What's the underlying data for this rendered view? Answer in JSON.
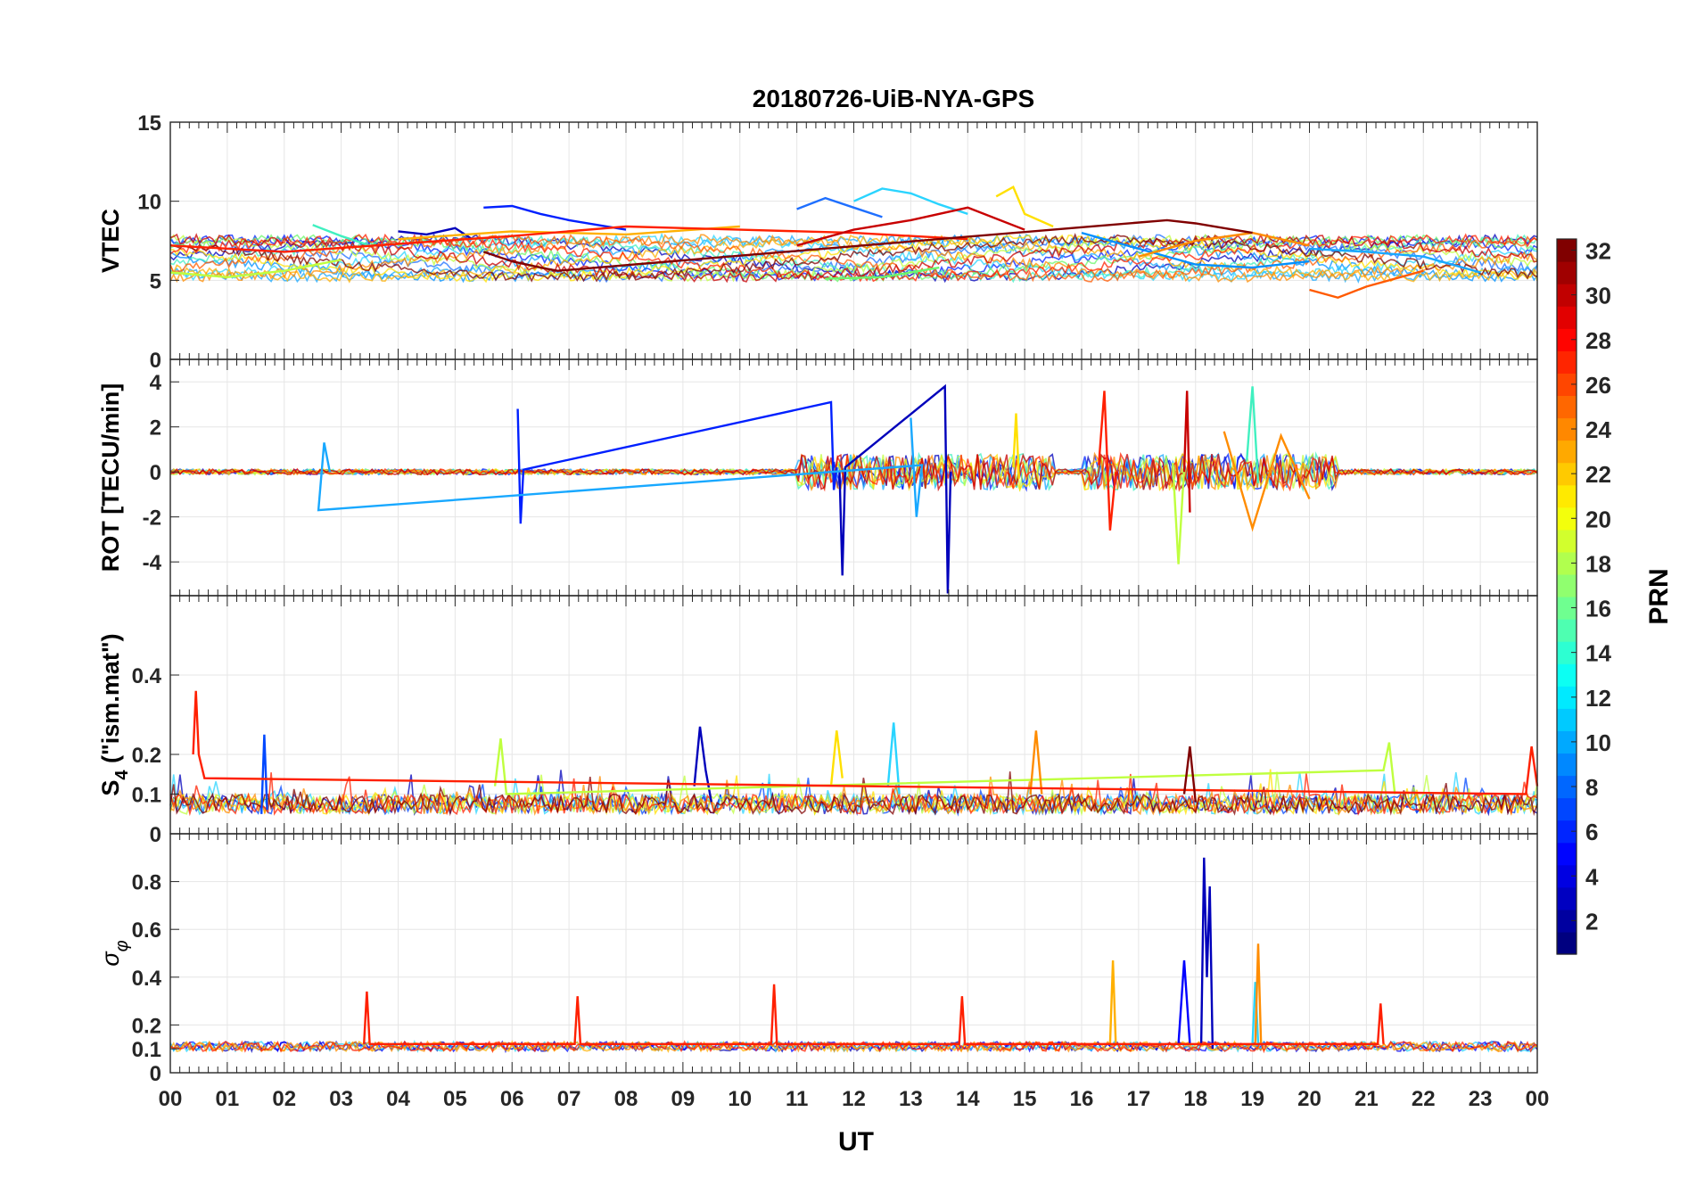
{
  "figure": {
    "title": "20180726-UiB-NYA-GPS",
    "xlabel": "UT",
    "colorbar_label": "PRN"
  },
  "chart_data": [
    {
      "type": "line",
      "id": "vtec",
      "ylabel": "VTEC",
      "xlim": [
        0,
        24
      ],
      "ylim": [
        0,
        15
      ],
      "yticks": [
        0,
        5,
        10,
        15
      ],
      "ytick_labels": [
        "0",
        "5",
        "10",
        "15"
      ],
      "series": [
        {
          "name": "PRN 2",
          "color": "#0000bb",
          "x": [
            4.0,
            4.5,
            5.0,
            5.3
          ],
          "y": [
            8.1,
            7.9,
            8.3,
            7.6
          ]
        },
        {
          "name": "PRN 5",
          "color": "#0020ff",
          "x": [
            5.5,
            6.0,
            6.5,
            7.0,
            8.0
          ],
          "y": [
            9.6,
            9.7,
            9.2,
            8.8,
            8.2
          ]
        },
        {
          "name": "PRN 7",
          "color": "#1e6fff",
          "x": [
            11.0,
            11.5,
            12.0,
            12.5
          ],
          "y": [
            9.5,
            10.2,
            9.6,
            9.0
          ]
        },
        {
          "name": "PRN 8",
          "color": "#0090ff",
          "x": [
            16.0,
            17.0,
            18.0,
            19.0,
            20.0
          ],
          "y": [
            8.0,
            7.0,
            6.0,
            5.8,
            6.2
          ]
        },
        {
          "name": "PRN 10",
          "color": "#18a8ff",
          "x": [
            20.0,
            21.0,
            22.0,
            23.0
          ],
          "y": [
            7.0,
            6.8,
            6.5,
            5.5
          ]
        },
        {
          "name": "PRN 12",
          "color": "#2ad4ff",
          "x": [
            12.0,
            12.5,
            13.0,
            13.5,
            14.0
          ],
          "y": [
            10.0,
            10.8,
            10.5,
            9.8,
            9.2
          ]
        },
        {
          "name": "PRN 14",
          "color": "#40f0c0",
          "x": [
            2.5,
            3.0,
            3.5
          ],
          "y": [
            8.5,
            7.8,
            7.2
          ]
        },
        {
          "name": "PRN 16",
          "color": "#6cf76c",
          "x": [
            11.5,
            12.5,
            13.5
          ],
          "y": [
            5.1,
            5.2,
            5.8
          ]
        },
        {
          "name": "PRN 18",
          "color": "#bfff3f",
          "x": [
            0.0,
            1.0,
            2.0,
            3.0
          ],
          "y": [
            5.5,
            5.2,
            5.6,
            6.3
          ]
        },
        {
          "name": "PRN 20",
          "color": "#ffe000",
          "x": [
            14.5,
            14.8,
            15.0,
            15.5
          ],
          "y": [
            10.3,
            10.9,
            9.2,
            8.4
          ]
        },
        {
          "name": "PRN 22",
          "color": "#ffb000",
          "x": [
            4.0,
            6.0,
            8.0,
            10.0
          ],
          "y": [
            7.6,
            8.1,
            7.9,
            8.4
          ]
        },
        {
          "name": "PRN 24",
          "color": "#ff8c00",
          "x": [
            17.0,
            18.0,
            19.0,
            20.0
          ],
          "y": [
            6.5,
            7.5,
            8.0,
            7.2
          ]
        },
        {
          "name": "PRN 26",
          "color": "#ff5a00",
          "x": [
            20.0,
            20.5,
            21.0,
            22.0
          ],
          "y": [
            4.4,
            3.9,
            4.6,
            5.6
          ]
        },
        {
          "name": "PRN 28",
          "color": "#ff2000",
          "x": [
            0.0,
            2.0,
            4.0,
            6.0,
            8.0,
            10.0,
            12.0,
            14.0
          ],
          "y": [
            7.2,
            6.8,
            7.3,
            7.8,
            8.4,
            8.2,
            8.0,
            7.6
          ]
        },
        {
          "name": "PRN 30",
          "color": "#c80000",
          "x": [
            11.0,
            12.0,
            13.0,
            14.0,
            15.0
          ],
          "y": [
            7.2,
            8.2,
            8.8,
            9.6,
            8.2
          ]
        },
        {
          "name": "PRN 32",
          "color": "#800000",
          "x": [
            5.5,
            6.0,
            6.5,
            6.8,
            17.5,
            18.0,
            18.5,
            19.0
          ],
          "y": [
            6.8,
            6.2,
            5.8,
            5.6,
            8.8,
            8.6,
            8.3,
            8.0
          ]
        }
      ]
    },
    {
      "type": "line",
      "id": "rot",
      "ylabel": "ROT [TECU/min]",
      "xlim": [
        0,
        24
      ],
      "ylim": [
        -5.5,
        5
      ],
      "yticks": [
        -4,
        -2,
        0,
        2,
        4
      ],
      "ytick_labels": [
        "-4",
        "-2",
        "0",
        "2",
        "4"
      ],
      "series": [
        {
          "name": "PRN 2",
          "color": "#0000bb",
          "x": [
            11.75,
            11.8,
            11.85,
            13.6,
            13.65,
            13.7
          ],
          "y": [
            0.0,
            -4.6,
            0.2,
            3.8,
            -5.4,
            0.0
          ]
        },
        {
          "name": "PRN 5",
          "color": "#0020ff",
          "x": [
            6.1,
            6.15,
            6.2,
            11.6,
            11.65,
            11.7
          ],
          "y": [
            2.8,
            -2.3,
            0.1,
            3.1,
            -0.8,
            0.2
          ]
        },
        {
          "name": "PRN 10",
          "color": "#18a8ff",
          "x": [
            13.0,
            13.1,
            13.2,
            2.6,
            2.7,
            2.8
          ],
          "y": [
            2.4,
            -2.0,
            0.3,
            -1.7,
            1.3,
            0.0
          ]
        },
        {
          "name": "PRN 14",
          "color": "#40f0c0",
          "x": [
            18.9,
            19.0,
            19.1
          ],
          "y": [
            0.5,
            3.8,
            -0.5
          ]
        },
        {
          "name": "PRN 18",
          "color": "#bfff3f",
          "x": [
            17.6,
            17.7,
            17.8
          ],
          "y": [
            0.4,
            -4.1,
            0.2
          ]
        },
        {
          "name": "PRN 20",
          "color": "#ffe000",
          "x": [
            14.8,
            14.85,
            14.9
          ],
          "y": [
            0.2,
            2.6,
            -0.3
          ]
        },
        {
          "name": "PRN 24",
          "color": "#ff8c00",
          "x": [
            18.5,
            19.0,
            19.5,
            20.0
          ],
          "y": [
            1.8,
            -2.5,
            1.6,
            -1.2
          ]
        },
        {
          "name": "PRN 28",
          "color": "#ff2000",
          "x": [
            16.3,
            16.4,
            16.5,
            16.6
          ],
          "y": [
            0.3,
            3.6,
            -2.6,
            0.0
          ]
        },
        {
          "name": "PRN 30",
          "color": "#c80000",
          "x": [
            17.8,
            17.85,
            17.9
          ],
          "y": [
            0.0,
            3.6,
            -1.8
          ]
        }
      ]
    },
    {
      "type": "line",
      "id": "s4",
      "ylabel": "S4 (\"ism.mat\")",
      "ylabel_main": "S",
      "ylabel_sub": "4",
      "ylabel_rest": " (\"ism.mat\")",
      "xlim": [
        0,
        24
      ],
      "ylim": [
        0,
        0.6
      ],
      "yticks": [
        0,
        0.1,
        0.2,
        0.4
      ],
      "ytick_labels": [
        "0",
        "0.1",
        "0.2",
        "0.4"
      ],
      "series": [
        {
          "name": "PRN 2",
          "color": "#0000bb",
          "x": [
            9.2,
            9.3,
            9.4,
            9.5
          ],
          "y": [
            0.12,
            0.27,
            0.16,
            0.08
          ]
        },
        {
          "name": "PRN 6",
          "color": "#0048ff",
          "x": [
            1.6,
            1.65,
            1.7
          ],
          "y": [
            0.05,
            0.25,
            0.06
          ]
        },
        {
          "name": "PRN 12",
          "color": "#2ad4ff",
          "x": [
            12.6,
            12.7,
            12.8
          ],
          "y": [
            0.12,
            0.28,
            0.1
          ]
        },
        {
          "name": "PRN 18",
          "color": "#bfff3f",
          "x": [
            5.7,
            5.8,
            5.9,
            21.3,
            21.4,
            21.5
          ],
          "y": [
            0.12,
            0.24,
            0.1,
            0.16,
            0.23,
            0.1
          ]
        },
        {
          "name": "PRN 20",
          "color": "#ffe000",
          "x": [
            11.6,
            11.7,
            11.8
          ],
          "y": [
            0.12,
            0.26,
            0.14
          ]
        },
        {
          "name": "PRN 24",
          "color": "#ff8c00",
          "x": [
            15.1,
            15.2,
            15.3
          ],
          "y": [
            0.1,
            0.26,
            0.1
          ]
        },
        {
          "name": "PRN 28",
          "color": "#ff2000",
          "x": [
            0.4,
            0.45,
            0.5,
            0.6,
            23.8,
            23.9,
            24.0
          ],
          "y": [
            0.2,
            0.36,
            0.2,
            0.14,
            0.1,
            0.22,
            0.12
          ]
        },
        {
          "name": "PRN 32",
          "color": "#800000",
          "x": [
            17.8,
            17.9,
            18.0
          ],
          "y": [
            0.1,
            0.22,
            0.08
          ]
        }
      ]
    },
    {
      "type": "line",
      "id": "sigma_phi",
      "ylabel": "σφ",
      "ylabel_main": "σ",
      "ylabel_sub": "φ",
      "xlim": [
        0,
        24
      ],
      "ylim": [
        0,
        1.0
      ],
      "yticks": [
        0,
        0.1,
        0.2,
        0.4,
        0.6,
        0.8
      ],
      "ytick_labels": [
        "0",
        "0.1",
        "0.2",
        "0.4",
        "0.6",
        "0.8"
      ],
      "series": [
        {
          "name": "PRN 2",
          "color": "#0000bb",
          "x": [
            18.1,
            18.15,
            18.2,
            18.25,
            18.3
          ],
          "y": [
            0.12,
            0.9,
            0.4,
            0.78,
            0.1
          ]
        },
        {
          "name": "PRN 4",
          "color": "#0000ff",
          "x": [
            17.7,
            17.8,
            17.9
          ],
          "y": [
            0.12,
            0.47,
            0.12
          ]
        },
        {
          "name": "PRN 12",
          "color": "#2ad4ff",
          "x": [
            19.0,
            19.05,
            19.1
          ],
          "y": [
            0.12,
            0.38,
            0.12
          ]
        },
        {
          "name": "PRN 22",
          "color": "#ffb000",
          "x": [
            16.5,
            16.55,
            16.6
          ],
          "y": [
            0.12,
            0.47,
            0.12
          ]
        },
        {
          "name": "PRN 24",
          "color": "#ff8c00",
          "x": [
            19.05,
            19.1,
            19.15
          ],
          "y": [
            0.12,
            0.54,
            0.12
          ]
        },
        {
          "name": "PRN 28",
          "color": "#ff2000",
          "x": [
            3.4,
            3.45,
            3.5,
            7.1,
            7.15,
            7.2,
            10.55,
            10.6,
            10.65,
            13.85,
            13.9,
            13.95,
            21.2,
            21.25,
            21.3
          ],
          "y": [
            0.12,
            0.34,
            0.12,
            0.12,
            0.32,
            0.12,
            0.12,
            0.37,
            0.12,
            0.12,
            0.32,
            0.12,
            0.12,
            0.29,
            0.12
          ]
        }
      ]
    }
  ],
  "x_axis": {
    "xlim": [
      0,
      24
    ],
    "tick_labels": [
      "00",
      "01",
      "02",
      "03",
      "04",
      "05",
      "06",
      "07",
      "08",
      "09",
      "10",
      "11",
      "12",
      "13",
      "14",
      "15",
      "16",
      "17",
      "18",
      "19",
      "20",
      "21",
      "22",
      "23",
      "00"
    ]
  },
  "colorbar": {
    "label": "PRN",
    "range": [
      1,
      32
    ],
    "ticks": [
      2,
      4,
      6,
      8,
      10,
      12,
      14,
      16,
      18,
      20,
      22,
      24,
      26,
      28,
      30,
      32
    ],
    "tick_labels": [
      "2",
      "4",
      "6",
      "8",
      "10",
      "12",
      "14",
      "16",
      "18",
      "20",
      "22",
      "24",
      "26",
      "28",
      "30",
      "32"
    ]
  }
}
